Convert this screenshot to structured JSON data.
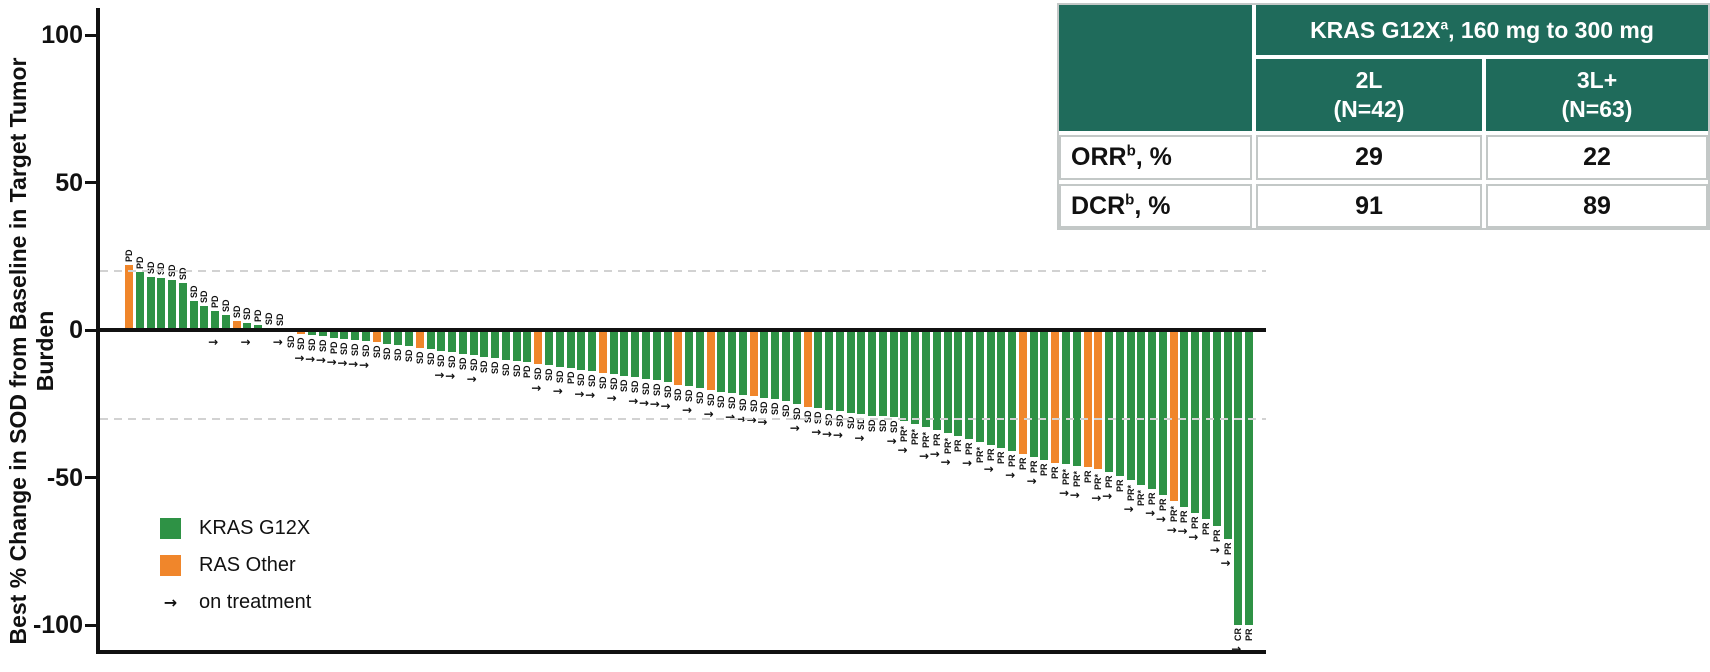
{
  "chart_data": {
    "type": "bar",
    "subtype": "waterfall",
    "ylabel": "Best % Change in SOD from Baseline in Target Tumor Burden",
    "yticks": [
      100,
      50,
      0,
      -50,
      -100
    ],
    "ylim": [
      -110,
      108
    ],
    "reference_lines": [
      20,
      -30
    ],
    "grid": "off",
    "legend_position": "lower-left",
    "arrow_glyph": "→",
    "colors": {
      "kras_g12x": "#2e9245",
      "ras_other": "#f0862b",
      "axis": "#111111",
      "refline": "#d2d2d2"
    },
    "legend": [
      {
        "swatch": "kras_g12x",
        "label": "KRAS G12X"
      },
      {
        "swatch": "ras_other",
        "label": "RAS Other"
      },
      {
        "swatch": "arrow",
        "label": "on treatment"
      }
    ],
    "group_key": {
      "G": "KRAS G12X",
      "O": "RAS Other"
    },
    "bars": {
      "values": [
        22,
        19.5,
        18,
        17.5,
        17,
        16,
        10,
        8,
        6.5,
        5,
        3,
        2.5,
        1.7,
        0.8,
        0.3,
        -0.7,
        -1.2,
        -1.8,
        -2.2,
        -2.6,
        -3,
        -3.4,
        -3.8,
        -4.2,
        -4.6,
        -5,
        -5.5,
        -6,
        -6.5,
        -7,
        -7.5,
        -8,
        -8.5,
        -9,
        -9.5,
        -10,
        -10.5,
        -11,
        -11.5,
        -12,
        -12.5,
        -13,
        -13.5,
        -14,
        -14.5,
        -15,
        -15.5,
        -16,
        -16.5,
        -17,
        -17.5,
        -18.5,
        -19,
        -19.5,
        -20.5,
        -21,
        -21.5,
        -22,
        -22.5,
        -23,
        -23.5,
        -24,
        -25,
        -26,
        -26.5,
        -27,
        -27.5,
        -28,
        -28.5,
        -29,
        -29.3,
        -29.6,
        -31,
        -32,
        -33,
        -34,
        -35,
        -36,
        -37,
        -38,
        -39,
        -40,
        -41,
        -42,
        -43,
        -44,
        -45,
        -45.5,
        -46,
        -46.5,
        -47,
        -48,
        -49.5,
        -51,
        -52.5,
        -54,
        -56,
        -58,
        -60,
        -62,
        -64,
        -66.5,
        -71,
        -100,
        -100
      ],
      "groups": [
        "O",
        "G",
        "G",
        "G",
        "G",
        "G",
        "G",
        "G",
        "G",
        "G",
        "O",
        "G",
        "G",
        "O",
        "G",
        "G",
        "O",
        "G",
        "G",
        "G",
        "G",
        "G",
        "G",
        "O",
        "G",
        "G",
        "G",
        "O",
        "G",
        "G",
        "G",
        "G",
        "G",
        "G",
        "G",
        "G",
        "G",
        "G",
        "O",
        "G",
        "G",
        "G",
        "G",
        "G",
        "O",
        "G",
        "G",
        "G",
        "G",
        "G",
        "G",
        "O",
        "G",
        "G",
        "O",
        "G",
        "G",
        "G",
        "O",
        "G",
        "G",
        "G",
        "G",
        "O",
        "G",
        "G",
        "G",
        "G",
        "G",
        "G",
        "G",
        "G",
        "G",
        "G",
        "G",
        "G",
        "G",
        "G",
        "G",
        "G",
        "G",
        "G",
        "G",
        "O",
        "G",
        "G",
        "O",
        "G",
        "G",
        "O",
        "O",
        "G",
        "G",
        "G",
        "G",
        "G",
        "G",
        "O",
        "G",
        "G",
        "G",
        "G",
        "G",
        "G",
        "G"
      ],
      "responses": [
        "PD",
        "PD",
        "SD",
        "SD",
        "SD",
        "SD",
        "SD",
        "SD",
        "PD",
        "SD",
        "SD",
        "SD",
        "PD",
        "SD",
        "SD",
        "SD",
        "SD",
        "SD",
        "SD",
        "PD",
        "SD",
        "SD",
        "SD",
        "SD",
        "SD",
        "SD",
        "SD",
        "SD",
        "SD",
        "SD",
        "SD",
        "SD",
        "SD",
        "SD",
        "SD",
        "SD",
        "SD",
        "PD",
        "SD",
        "SD",
        "SD",
        "PD",
        "SD",
        "SD",
        "SD",
        "SD",
        "SD",
        "SD",
        "SD",
        "SD",
        "SD",
        "SD",
        "SD",
        "SD",
        "SD",
        "SD",
        "SD",
        "SD",
        "SD",
        "SD",
        "SD",
        "SD",
        "SD",
        "SD",
        "SD",
        "SD",
        "SD",
        "SD",
        "SD",
        "SD",
        "SD",
        "SD",
        "PR*",
        "PR*",
        "PR*",
        "PR",
        "PR*",
        "PR",
        "PR",
        "PR*",
        "PR",
        "PR",
        "PR",
        "PR",
        "PR",
        "PR",
        "PR",
        "PR*",
        "PR*",
        "PR",
        "PR*",
        "PR",
        "PR",
        "PR*",
        "PR*",
        "PR",
        "PR",
        "PR*",
        "PR",
        "PR",
        "PR",
        "PR",
        "PR",
        "CR",
        "PR"
      ],
      "on_treatment": [
        0,
        0,
        0,
        0,
        0,
        0,
        0,
        0,
        1,
        0,
        0,
        1,
        0,
        0,
        1,
        0,
        1,
        1,
        1,
        1,
        1,
        1,
        1,
        0,
        0,
        0,
        0,
        0,
        0,
        1,
        1,
        0,
        1,
        0,
        0,
        0,
        0,
        0,
        1,
        0,
        1,
        0,
        1,
        1,
        0,
        1,
        0,
        1,
        1,
        1,
        1,
        0,
        1,
        0,
        1,
        0,
        1,
        1,
        1,
        1,
        0,
        0,
        1,
        0,
        1,
        1,
        1,
        0,
        1,
        0,
        0,
        1,
        1,
        0,
        1,
        1,
        1,
        0,
        1,
        0,
        1,
        0,
        1,
        0,
        1,
        0,
        0,
        1,
        1,
        0,
        1,
        1,
        0,
        1,
        0,
        1,
        1,
        1,
        1,
        1,
        0,
        1,
        1,
        1,
        0
      ]
    }
  },
  "table": {
    "span_header": {
      "text1": "KRAS G12X",
      "sup": "a",
      "text2": ", 160 mg to 300 mg"
    },
    "col_headers": [
      {
        "line1": "2L",
        "line2": "(N=42)"
      },
      {
        "line1": "3L+",
        "line2": "(N=63)"
      }
    ],
    "rows": [
      {
        "label": "ORR",
        "sup": "b",
        "suffix": ", %",
        "values": [
          "29",
          "22"
        ]
      },
      {
        "label": "DCR",
        "sup": "b",
        "suffix": ", %",
        "values": [
          "91",
          "89"
        ]
      }
    ]
  }
}
